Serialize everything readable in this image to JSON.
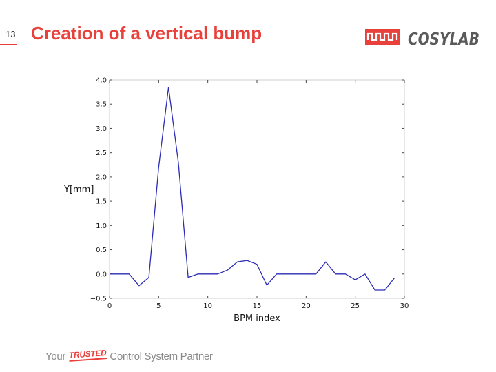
{
  "slide": {
    "number": "13",
    "title": "Creation of a vertical bump",
    "logo_text": "COSYLAB",
    "footer": {
      "prefix": "Your ",
      "highlight": "TRUSTED",
      "suffix": " Control System Partner"
    }
  },
  "colors": {
    "accent": "#e8413c",
    "series": "#2b2bb5",
    "footer_text": "#8a8a8a"
  },
  "chart_data": {
    "type": "line",
    "title": "",
    "xlabel": "BPM index",
    "ylabel": "Y[mm]",
    "xlim": [
      0,
      30
    ],
    "ylim": [
      -0.5,
      4.0
    ],
    "xticks": [
      "0",
      "5",
      "10",
      "15",
      "20",
      "25",
      "30"
    ],
    "yticks": [
      "4.0",
      "3.5",
      "3.0",
      "2.5",
      "2.0",
      "1.5",
      "1.0",
      "0.5",
      "0.0",
      "−0.5"
    ],
    "grid": false,
    "series": [
      {
        "x": [
          0,
          1,
          2,
          3,
          4,
          5,
          6,
          7,
          8,
          9,
          10,
          11,
          12,
          13,
          14,
          15,
          16,
          17,
          18,
          19,
          20,
          21,
          22,
          23,
          24,
          25,
          26,
          27,
          28,
          29
        ],
        "y": [
          0.0,
          0.0,
          0.0,
          -0.24,
          -0.07,
          2.2,
          3.85,
          2.3,
          -0.07,
          0.0,
          0.0,
          0.0,
          0.08,
          0.25,
          0.28,
          0.2,
          -0.23,
          0.0,
          0.0,
          0.0,
          0.0,
          0.0,
          0.25,
          0.0,
          0.0,
          -0.12,
          0.0,
          -0.33,
          -0.33,
          -0.08
        ]
      }
    ]
  }
}
